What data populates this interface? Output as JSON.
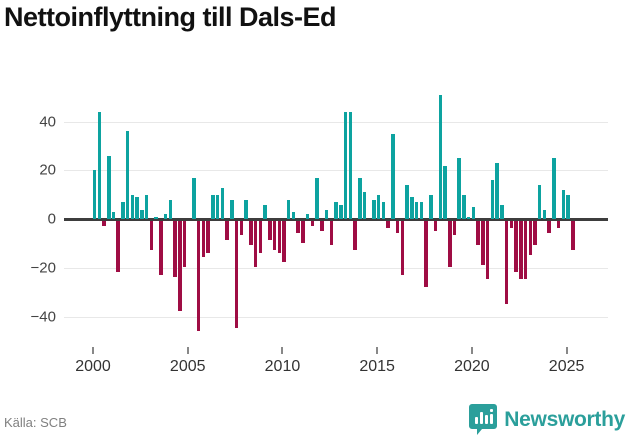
{
  "title": "Nettoinflyttning till Dals-Ed",
  "source": {
    "text": "Källa: SCB"
  },
  "brand": {
    "name": "Newsworthy",
    "icon": "bar-chart-bubble-icon"
  },
  "colors": {
    "positive": "#0da3a0",
    "negative": "#9f0d44",
    "zero_line": "#3d3d3d",
    "gridline": "#e8e8e8",
    "brand_teal": "#2b9f9b"
  },
  "chart_data": {
    "type": "bar",
    "title": "Nettoinflyttning till Dals-Ed",
    "xlabel": "",
    "ylabel": "",
    "x_ticks": [
      2000,
      2005,
      2010,
      2015,
      2020,
      2025
    ],
    "y_ticks": [
      {
        "v": 40,
        "label": "40"
      },
      {
        "v": 20,
        "label": "20"
      },
      {
        "v": 0,
        "label": "0"
      },
      {
        "v": -20,
        "label": "−20"
      },
      {
        "v": -40,
        "label": "−40"
      }
    ],
    "ylim": [
      -48,
      54
    ],
    "grid": true,
    "legend": "none",
    "frequency": "quarterly",
    "series_name": "Nettoinflyttning",
    "years": [
      {
        "year": 2000,
        "values": [
          20,
          44,
          -2,
          26
        ]
      },
      {
        "year": 2001,
        "values": [
          3,
          -21,
          7,
          36
        ]
      },
      {
        "year": 2002,
        "values": [
          10,
          9,
          4,
          10
        ]
      },
      {
        "year": 2003,
        "values": [
          -12,
          1,
          -22,
          2
        ]
      },
      {
        "year": 2004,
        "values": [
          8,
          -23,
          -37,
          -19
        ]
      },
      {
        "year": 2005,
        "values": [
          0,
          17,
          -45,
          -15
        ]
      },
      {
        "year": 2006,
        "values": [
          -13,
          10,
          10,
          13
        ]
      },
      {
        "year": 2007,
        "values": [
          -8,
          8,
          -44,
          -6
        ]
      },
      {
        "year": 2008,
        "values": [
          8,
          -10,
          -19,
          -13
        ]
      },
      {
        "year": 2009,
        "values": [
          6,
          -8,
          -12,
          -13
        ]
      },
      {
        "year": 2010,
        "values": [
          -17,
          8,
          3,
          -5
        ]
      },
      {
        "year": 2011,
        "values": [
          -9,
          2,
          -2,
          17
        ]
      },
      {
        "year": 2012,
        "values": [
          -4,
          4,
          -10,
          7
        ]
      },
      {
        "year": 2013,
        "values": [
          6,
          44,
          44,
          -12
        ]
      },
      {
        "year": 2014,
        "values": [
          17,
          11,
          0,
          8
        ]
      },
      {
        "year": 2015,
        "values": [
          10,
          7,
          -3,
          35
        ]
      },
      {
        "year": 2016,
        "values": [
          -5,
          -22,
          14,
          9
        ]
      },
      {
        "year": 2017,
        "values": [
          7,
          7,
          -27,
          10
        ]
      },
      {
        "year": 2018,
        "values": [
          -4,
          51,
          22,
          -19
        ]
      },
      {
        "year": 2019,
        "values": [
          -6,
          25,
          10,
          1
        ]
      },
      {
        "year": 2020,
        "values": [
          5,
          -10,
          -18,
          -24
        ]
      },
      {
        "year": 2021,
        "values": [
          16,
          23,
          6,
          -34
        ]
      },
      {
        "year": 2022,
        "values": [
          -3,
          -21,
          -24,
          -24
        ]
      },
      {
        "year": 2023,
        "values": [
          -14,
          -10,
          14,
          4
        ]
      },
      {
        "year": 2024,
        "values": [
          -5,
          25,
          -3,
          12
        ]
      },
      {
        "year": 2025,
        "values": [
          10,
          -12
        ]
      }
    ]
  }
}
